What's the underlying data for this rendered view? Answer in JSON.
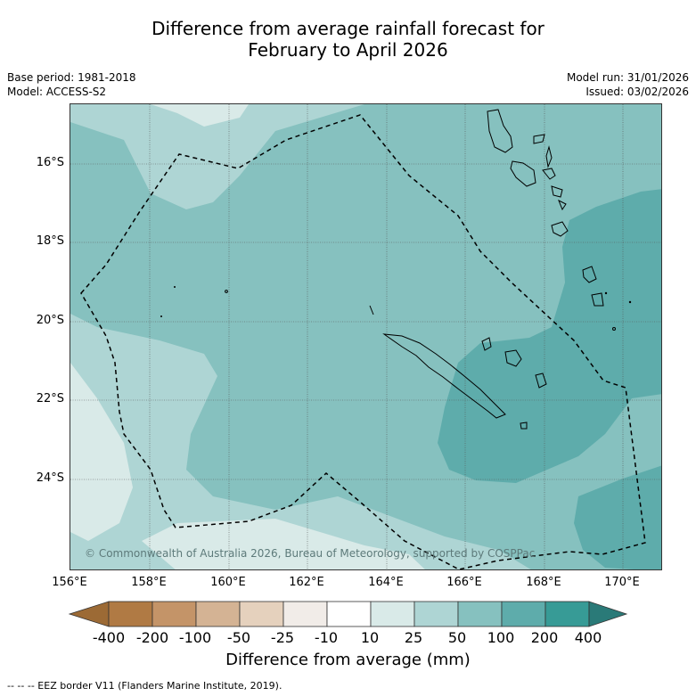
{
  "title": {
    "line1": "Difference from average rainfall forecast for",
    "line2": "February to April 2026"
  },
  "meta": {
    "base_period": "Base period: 1981-2018",
    "model": "Model: ACCESS-S2",
    "model_run": "Model run: 31/01/2026",
    "issued": "Issued: 03/02/2026"
  },
  "map": {
    "lat_labels": [
      "16°S",
      "18°S",
      "20°S",
      "22°S",
      "24°S"
    ],
    "lon_labels": [
      "156°E",
      "158°E",
      "160°E",
      "162°E",
      "164°E",
      "166°E",
      "168°E",
      "170°E"
    ],
    "copyright": "© Commonwealth of Australia 2026, Bureau of Meteorology, supported by COSPPac"
  },
  "colorbar": {
    "ticks": [
      "-400",
      "-200",
      "-100",
      "-50",
      "-25",
      "-10",
      "10",
      "25",
      "50",
      "100",
      "200",
      "400"
    ],
    "colors": [
      "#9c6a35",
      "#b07a44",
      "#c49468",
      "#d4b394",
      "#e5d1bd",
      "#f1ece8",
      "#ffffff",
      "#d9eae8",
      "#aed5d4",
      "#86c1bf",
      "#5eacab",
      "#379b96",
      "#2a7a78"
    ],
    "label": "Difference from average (mm)"
  },
  "legend": {
    "eez_note": "--  --  -- EEZ border V11 (Flanders Marine Institute, 2019)."
  }
}
